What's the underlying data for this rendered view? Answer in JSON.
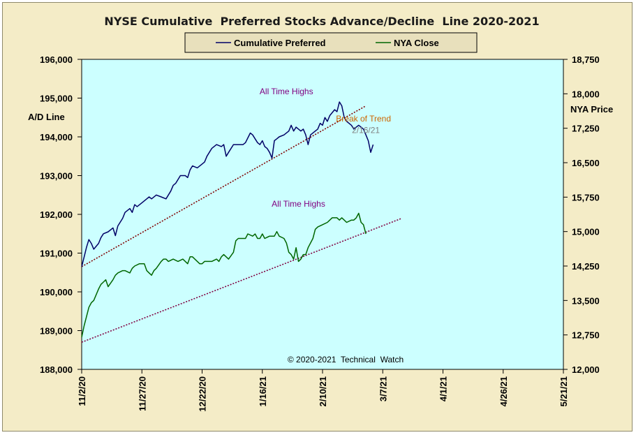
{
  "chart_data": {
    "type": "line",
    "title": "NYSE Cumulative  Preferred Stocks Advance/Decline  Line 2020-2021",
    "copyright": "© 2020-2021  Technical  Watch",
    "legend": {
      "position": "top-center",
      "items": [
        {
          "name": "Cumulative Preferred",
          "color": "#000066"
        },
        {
          "name": "NYA Close",
          "color": "#006600"
        }
      ]
    },
    "background_color": "#ccffff",
    "frame_color": "#f4ecc7",
    "grid": false,
    "left_axis": {
      "label": "A/D Line",
      "ylim": [
        188000,
        196000
      ],
      "ticks": [
        188000,
        189000,
        190000,
        191000,
        192000,
        193000,
        194000,
        195000,
        196000
      ],
      "tick_labels": [
        "188,000",
        "189,000",
        "190,000",
        "191,000",
        "192,000",
        "193,000",
        "194,000",
        "195,000",
        "196,000"
      ]
    },
    "right_axis": {
      "label": "NYA Price",
      "ylim": [
        12000,
        18750
      ],
      "ticks": [
        12000,
        12750,
        13500,
        14250,
        15000,
        15750,
        16500,
        17250,
        18000,
        18750
      ],
      "tick_labels": [
        "12,000",
        "12,750",
        "13,500",
        "14,250",
        "15,000",
        "15,750",
        "16,500",
        "17,250",
        "18,000",
        "18,750"
      ]
    },
    "x_axis": {
      "start": "2020-11-02",
      "end": "2021-05-21",
      "tick_labels": [
        "11/2/20",
        "11/27/20",
        "12/22/20",
        "1/16/21",
        "2/10/21",
        "3/7/21",
        "4/1/21",
        "4/26/21",
        "5/21/21"
      ],
      "ticks": [
        "2020-11-02",
        "2020-11-27",
        "2020-12-22",
        "2021-01-16",
        "2021-02-10",
        "2021-03-07",
        "2021-04-01",
        "2021-04-26",
        "2021-05-21"
      ]
    },
    "series": [
      {
        "name": "Cumulative Preferred",
        "axis": "left",
        "color": "#000066",
        "points": [
          [
            "2020-11-02",
            190650
          ],
          [
            "2020-11-03",
            190900
          ],
          [
            "2020-11-04",
            191150
          ],
          [
            "2020-11-05",
            191350
          ],
          [
            "2020-11-06",
            191250
          ],
          [
            "2020-11-07",
            191100
          ],
          [
            "2020-11-09",
            191250
          ],
          [
            "2020-11-10",
            191400
          ],
          [
            "2020-11-11",
            191500
          ],
          [
            "2020-11-13",
            191550
          ],
          [
            "2020-11-15",
            191650
          ],
          [
            "2020-11-16",
            191450
          ],
          [
            "2020-11-17",
            191700
          ],
          [
            "2020-11-19",
            191900
          ],
          [
            "2020-11-20",
            192050
          ],
          [
            "2020-11-22",
            192150
          ],
          [
            "2020-11-23",
            192050
          ],
          [
            "2020-11-24",
            192250
          ],
          [
            "2020-11-25",
            192200
          ],
          [
            "2020-11-27",
            192300
          ],
          [
            "2020-11-29",
            192400
          ],
          [
            "2020-11-30",
            192450
          ],
          [
            "2020-12-01",
            192400
          ],
          [
            "2020-12-03",
            192500
          ],
          [
            "2020-12-05",
            192450
          ],
          [
            "2020-12-07",
            192400
          ],
          [
            "2020-12-09",
            192600
          ],
          [
            "2020-12-10",
            192750
          ],
          [
            "2020-12-11",
            192800
          ],
          [
            "2020-12-13",
            193000
          ],
          [
            "2020-12-15",
            193000
          ],
          [
            "2020-12-16",
            192950
          ],
          [
            "2020-12-17",
            193150
          ],
          [
            "2020-12-18",
            193250
          ],
          [
            "2020-12-20",
            193200
          ],
          [
            "2020-12-22",
            193300
          ],
          [
            "2020-12-23",
            193350
          ],
          [
            "2020-12-24",
            193500
          ],
          [
            "2020-12-26",
            193700
          ],
          [
            "2020-12-28",
            193800
          ],
          [
            "2020-12-30",
            193750
          ],
          [
            "2020-12-31",
            193800
          ],
          [
            "2021-01-01",
            193500
          ],
          [
            "2021-01-02",
            193600
          ],
          [
            "2021-01-04",
            193800
          ],
          [
            "2021-01-06",
            193800
          ],
          [
            "2021-01-08",
            193800
          ],
          [
            "2021-01-09",
            193850
          ],
          [
            "2021-01-11",
            194100
          ],
          [
            "2021-01-12",
            194050
          ],
          [
            "2021-01-13",
            193950
          ],
          [
            "2021-01-14",
            193850
          ],
          [
            "2021-01-15",
            193800
          ],
          [
            "2021-01-16",
            193900
          ],
          [
            "2021-01-17",
            193750
          ],
          [
            "2021-01-18",
            193700
          ],
          [
            "2021-01-19",
            193600
          ],
          [
            "2021-01-20",
            193450
          ],
          [
            "2021-01-21",
            193900
          ],
          [
            "2021-01-22",
            193950
          ],
          [
            "2021-01-23",
            194000
          ],
          [
            "2021-01-25",
            194050
          ],
          [
            "2021-01-27",
            194150
          ],
          [
            "2021-01-28",
            194300
          ],
          [
            "2021-01-29",
            194150
          ],
          [
            "2021-01-30",
            194250
          ],
          [
            "2021-02-01",
            194150
          ],
          [
            "2021-02-02",
            194200
          ],
          [
            "2021-02-03",
            194050
          ],
          [
            "2021-02-04",
            193800
          ],
          [
            "2021-02-05",
            194050
          ],
          [
            "2021-02-07",
            194150
          ],
          [
            "2021-02-08",
            194200
          ],
          [
            "2021-02-09",
            194350
          ],
          [
            "2021-02-10",
            194300
          ],
          [
            "2021-02-11",
            194500
          ],
          [
            "2021-02-12",
            194400
          ],
          [
            "2021-02-13",
            194550
          ],
          [
            "2021-02-15",
            194700
          ],
          [
            "2021-02-16",
            194650
          ],
          [
            "2021-02-17",
            194900
          ],
          [
            "2021-02-18",
            194800
          ],
          [
            "2021-02-19",
            194500
          ],
          [
            "2021-02-20",
            194400
          ],
          [
            "2021-02-22",
            194300
          ],
          [
            "2021-02-23",
            194200
          ],
          [
            "2021-02-24",
            194250
          ],
          [
            "2021-02-25",
            194300
          ],
          [
            "2021-02-26",
            194250
          ],
          [
            "2021-02-27",
            194200
          ],
          [
            "2021-02-28",
            194050
          ],
          [
            "2021-03-01",
            193900
          ],
          [
            "2021-03-02",
            193600
          ],
          [
            "2021-03-03",
            193800
          ]
        ]
      },
      {
        "name": "NYA Close",
        "axis": "right",
        "color": "#006600",
        "points": [
          [
            "2020-11-02",
            12700
          ],
          [
            "2020-11-03",
            12950
          ],
          [
            "2020-11-04",
            13150
          ],
          [
            "2020-11-05",
            13350
          ],
          [
            "2020-11-06",
            13450
          ],
          [
            "2020-11-07",
            13500
          ],
          [
            "2020-11-09",
            13750
          ],
          [
            "2020-11-10",
            13850
          ],
          [
            "2020-11-11",
            13900
          ],
          [
            "2020-11-12",
            13950
          ],
          [
            "2020-11-13",
            13800
          ],
          [
            "2020-11-15",
            13950
          ],
          [
            "2020-11-16",
            14050
          ],
          [
            "2020-11-17",
            14100
          ],
          [
            "2020-11-19",
            14150
          ],
          [
            "2020-11-20",
            14150
          ],
          [
            "2020-11-22",
            14100
          ],
          [
            "2020-11-23",
            14200
          ],
          [
            "2020-11-24",
            14250
          ],
          [
            "2020-11-26",
            14300
          ],
          [
            "2020-11-27",
            14300
          ],
          [
            "2020-11-28",
            14300
          ],
          [
            "2020-11-29",
            14150
          ],
          [
            "2020-11-30",
            14100
          ],
          [
            "2020-12-01",
            14050
          ],
          [
            "2020-12-02",
            14150
          ],
          [
            "2020-12-03",
            14200
          ],
          [
            "2020-12-05",
            14350
          ],
          [
            "2020-12-06",
            14400
          ],
          [
            "2020-12-07",
            14400
          ],
          [
            "2020-12-08",
            14350
          ],
          [
            "2020-12-10",
            14400
          ],
          [
            "2020-12-12",
            14350
          ],
          [
            "2020-12-14",
            14400
          ],
          [
            "2020-12-15",
            14350
          ],
          [
            "2020-12-16",
            14300
          ],
          [
            "2020-12-17",
            14450
          ],
          [
            "2020-12-18",
            14450
          ],
          [
            "2020-12-20",
            14350
          ],
          [
            "2020-12-21",
            14300
          ],
          [
            "2020-12-22",
            14300
          ],
          [
            "2020-12-23",
            14350
          ],
          [
            "2020-12-24",
            14350
          ],
          [
            "2020-12-26",
            14350
          ],
          [
            "2020-12-28",
            14400
          ],
          [
            "2020-12-29",
            14350
          ],
          [
            "2020-12-30",
            14450
          ],
          [
            "2020-12-31",
            14500
          ],
          [
            "2021-01-02",
            14400
          ],
          [
            "2021-01-04",
            14550
          ],
          [
            "2021-01-05",
            14800
          ],
          [
            "2021-01-06",
            14850
          ],
          [
            "2021-01-08",
            14850
          ],
          [
            "2021-01-09",
            14850
          ],
          [
            "2021-01-10",
            14950
          ],
          [
            "2021-01-12",
            14900
          ],
          [
            "2021-01-13",
            14950
          ],
          [
            "2021-01-14",
            14850
          ],
          [
            "2021-01-15",
            14850
          ],
          [
            "2021-01-16",
            14950
          ],
          [
            "2021-01-17",
            14850
          ],
          [
            "2021-01-19",
            14900
          ],
          [
            "2021-01-21",
            14900
          ],
          [
            "2021-01-22",
            15000
          ],
          [
            "2021-01-23",
            14900
          ],
          [
            "2021-01-25",
            14850
          ],
          [
            "2021-01-26",
            14750
          ],
          [
            "2021-01-27",
            14550
          ],
          [
            "2021-01-28",
            14500
          ],
          [
            "2021-01-29",
            14400
          ],
          [
            "2021-01-30",
            14650
          ],
          [
            "2021-01-31",
            14350
          ],
          [
            "2021-02-01",
            14400
          ],
          [
            "2021-02-02",
            14500
          ],
          [
            "2021-02-03",
            14500
          ],
          [
            "2021-02-04",
            14650
          ],
          [
            "2021-02-06",
            14850
          ],
          [
            "2021-02-07",
            15050
          ],
          [
            "2021-02-08",
            15100
          ],
          [
            "2021-02-10",
            15150
          ],
          [
            "2021-02-12",
            15200
          ],
          [
            "2021-02-13",
            15250
          ],
          [
            "2021-02-14",
            15300
          ],
          [
            "2021-02-15",
            15300
          ],
          [
            "2021-02-16",
            15300
          ],
          [
            "2021-02-17",
            15250
          ],
          [
            "2021-02-18",
            15300
          ],
          [
            "2021-02-19",
            15250
          ],
          [
            "2021-02-20",
            15200
          ],
          [
            "2021-02-22",
            15250
          ],
          [
            "2021-02-23",
            15250
          ],
          [
            "2021-02-24",
            15300
          ],
          [
            "2021-02-25",
            15400
          ],
          [
            "2021-02-26",
            15200
          ],
          [
            "2021-02-27",
            15150
          ],
          [
            "2021-02-28",
            14950
          ]
        ]
      }
    ],
    "trendlines": [
      {
        "axis": "left",
        "color": "#800000",
        "style": "dotted",
        "from": [
          "2020-11-02",
          190650
        ],
        "to": [
          "2021-02-28",
          194800
        ]
      },
      {
        "axis": "left",
        "color": "#800040",
        "style": "dotted",
        "from": [
          "2020-11-02",
          188700
        ],
        "to": [
          "2021-03-15",
          191900
        ]
      }
    ],
    "annotations": [
      {
        "text": "All Time Highs",
        "color": "#800080",
        "at": [
          "2021-01-26",
          195100
        ]
      },
      {
        "text": "All Time Highs",
        "color": "#800080",
        "at": [
          "2021-01-31",
          192200
        ]
      },
      {
        "text": "Break of Trend",
        "color": "#cc6600",
        "at": [
          "2021-02-27",
          194400
        ]
      },
      {
        "text": "2/16/21",
        "color": "#808080",
        "at": [
          "2021-02-28",
          194100
        ]
      }
    ]
  }
}
